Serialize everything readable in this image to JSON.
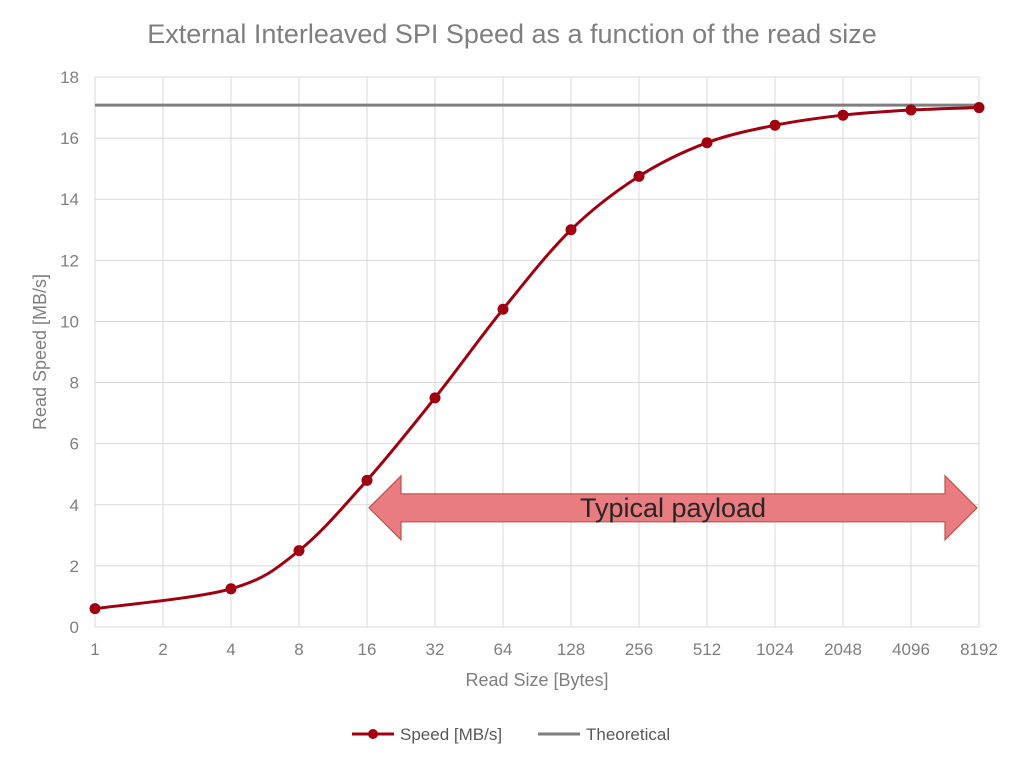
{
  "chart_data": {
    "type": "line",
    "title": "External Interleaved SPI Speed as a function of the read size",
    "xlabel": "Read Size [Bytes]",
    "ylabel": "Read Speed [MB/s]",
    "categories": [
      "1",
      "2",
      "4",
      "8",
      "16",
      "32",
      "64",
      "128",
      "256",
      "512",
      "1024",
      "2048",
      "4096",
      "8192"
    ],
    "x_scale": "log2",
    "ylim": [
      0,
      18
    ],
    "yticks": [
      "0",
      "2",
      "4",
      "6",
      "8",
      "10",
      "12",
      "14",
      "16",
      "18"
    ],
    "grid": true,
    "legend_position": "bottom",
    "series": [
      {
        "name": "Speed [MB/s]",
        "color": "#a00010",
        "x": [
          1,
          4,
          8,
          16,
          32,
          64,
          128,
          256,
          512,
          1024,
          2048,
          4096,
          8192
        ],
        "values": [
          0.6,
          1.25,
          2.5,
          4.8,
          7.5,
          10.4,
          13.0,
          14.75,
          15.85,
          16.42,
          16.75,
          16.92,
          17.0
        ],
        "markers": true,
        "smooth": true
      },
      {
        "name": "Theoretical",
        "color": "#7f7f7f",
        "x": [
          1,
          8192
        ],
        "values": [
          17.08,
          17.08
        ],
        "markers": false
      }
    ],
    "annotations": [
      {
        "text": "Typical payload",
        "type": "double-arrow",
        "x_from": 16,
        "x_to": 8192,
        "y": 3.9,
        "fill": "#e97c80",
        "stroke": "#c0504d"
      }
    ]
  }
}
